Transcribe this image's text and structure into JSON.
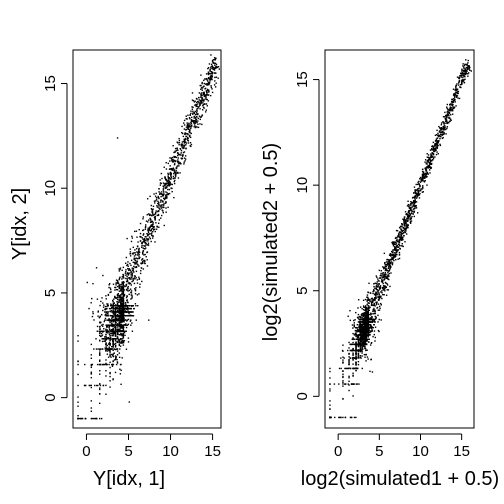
{
  "chart_data": [
    {
      "type": "scatter",
      "xlabel": "Y[idx, 1]",
      "ylabel": "Y[idx, 2]",
      "xlim": [
        -1.6,
        16.0
      ],
      "ylim": [
        -1.45,
        16.6
      ],
      "xticks": [
        0,
        5,
        10,
        15
      ],
      "yticks": [
        0,
        5,
        10,
        15
      ],
      "grid": false,
      "points_description": "dense diagonal cloud y≈x from ~2 to ~16, with discrete horizontal strips at low values and a few outliers",
      "scatter_params": {
        "low_level_ys": [
          -1,
          0.58,
          1.58,
          2.32,
          2.81,
          3.17,
          3.46,
          3.7,
          3.91,
          4.09,
          4.25,
          4.39
        ],
        "band_spread": 0.45,
        "main_from": 2.0,
        "main_to": 15.5,
        "seed": 11
      },
      "outliers": [
        {
          "x": 3.7,
          "y": 12.4
        },
        {
          "x": 0.1,
          "y": 5.5
        },
        {
          "x": 1.2,
          "y": 6.2
        },
        {
          "x": 15.0,
          "y": 16.1
        },
        {
          "x": 15.4,
          "y": 16.2
        }
      ]
    },
    {
      "type": "scatter",
      "xlabel": "log2(simulated1 + 0.5)",
      "ylabel": "log2(simulated2 + 0.5)",
      "xlim": [
        -1.6,
        16.5
      ],
      "ylim": [
        -1.5,
        16.4
      ],
      "xticks": [
        0,
        5,
        10,
        15
      ],
      "yticks": [
        0,
        5,
        10,
        15
      ],
      "grid": false,
      "points_description": "tight diagonal cloud y≈x from ~2.5 to ~15.8 widening at low values, with discrete horizontal strips at low values",
      "scatter_params": {
        "low_level_ys": [
          -1,
          0.58,
          1.32,
          1.81,
          2.17,
          2.46,
          2.7,
          2.91,
          3.09,
          3.25,
          3.39,
          3.52,
          3.64
        ],
        "band_spread": 0.25,
        "main_from": 2.5,
        "main_to": 15.8,
        "seed": 23
      },
      "outliers": [
        {
          "x": 15.6,
          "y": 15.7
        },
        {
          "x": 15.8,
          "y": 15.9
        }
      ]
    }
  ]
}
